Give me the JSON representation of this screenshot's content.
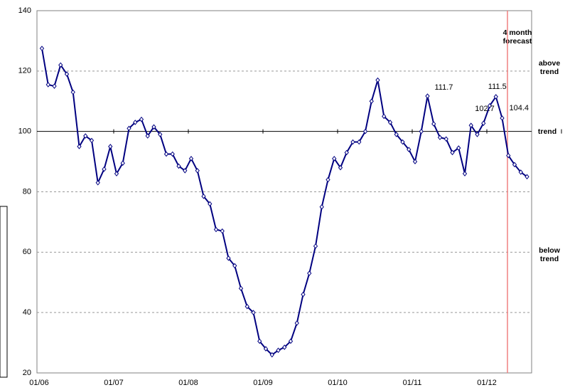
{
  "chart_data": {
    "type": "line",
    "categories": [
      "01/06",
      null,
      null,
      null,
      null,
      null,
      null,
      null,
      null,
      null,
      null,
      null,
      "01/07",
      null,
      null,
      null,
      null,
      null,
      null,
      null,
      null,
      null,
      null,
      null,
      "01/08",
      null,
      null,
      null,
      null,
      null,
      null,
      null,
      null,
      null,
      null,
      null,
      "01/09",
      null,
      null,
      null,
      null,
      null,
      null,
      null,
      null,
      null,
      null,
      null,
      "01/10",
      null,
      null,
      null,
      null,
      null,
      null,
      null,
      null,
      null,
      null,
      null,
      "01/11",
      null,
      null,
      null,
      null,
      null,
      null,
      null,
      null,
      null,
      null,
      null,
      "01/12",
      null,
      null,
      null,
      null,
      null,
      null
    ],
    "values": [
      127.5,
      115.5,
      115,
      122,
      119,
      113,
      95,
      98.5,
      97,
      83,
      87.5,
      95,
      86,
      89.5,
      101,
      103,
      104,
      98.5,
      101.5,
      99,
      92.5,
      92.5,
      88.5,
      87,
      91,
      87,
      78.5,
      76,
      67.5,
      67,
      58,
      55.5,
      48,
      42,
      40,
      30.5,
      28,
      26,
      27.5,
      28.5,
      30.5,
      36.5,
      46,
      53,
      62,
      75,
      84,
      91,
      88,
      93,
      96.5,
      96.5,
      100,
      110,
      117,
      105,
      103,
      99,
      96.5,
      94,
      90,
      100,
      111.7,
      102.5,
      98,
      97.5,
      93,
      94.5,
      86,
      102,
      99,
      102.7,
      108.5,
      111.5,
      104.4,
      92,
      89,
      86.5,
      85
    ],
    "value_labels": [
      null,
      null,
      null,
      null,
      null,
      null,
      null,
      null,
      null,
      null,
      null,
      null,
      null,
      null,
      null,
      null,
      null,
      null,
      null,
      null,
      null,
      null,
      null,
      null,
      null,
      null,
      null,
      null,
      null,
      null,
      null,
      null,
      null,
      null,
      null,
      null,
      null,
      null,
      null,
      null,
      null,
      null,
      null,
      null,
      null,
      null,
      null,
      null,
      null,
      null,
      null,
      null,
      null,
      null,
      null,
      null,
      null,
      null,
      null,
      null,
      null,
      null,
      "111.7",
      null,
      null,
      null,
      null,
      null,
      null,
      null,
      null,
      "102.7",
      null,
      "111.5",
      "104.4",
      null,
      null,
      null,
      null
    ],
    "color": "#000080",
    "ylim": [
      20,
      140
    ],
    "yticks": [
      20,
      40,
      60,
      80,
      100,
      120,
      140
    ],
    "grid": true,
    "reference_line": 100,
    "annotations": {
      "forecast": "4 month forecast",
      "above": "above trend",
      "trend": "trend",
      "below": "below trend"
    }
  }
}
